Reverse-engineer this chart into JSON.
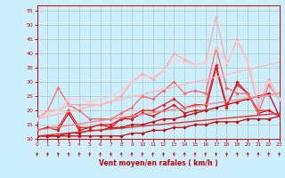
{
  "background_color": "#cceeff",
  "grid_color": "#aaccbb",
  "xlim": [
    0,
    23
  ],
  "ylim": [
    10,
    57
  ],
  "yticks": [
    10,
    15,
    20,
    25,
    30,
    35,
    40,
    45,
    50,
    55
  ],
  "xticks": [
    0,
    1,
    2,
    3,
    4,
    5,
    6,
    7,
    8,
    9,
    10,
    11,
    12,
    13,
    14,
    15,
    16,
    17,
    18,
    19,
    20,
    21,
    22,
    23
  ],
  "xlabel": "Vent moyen/en rafales ( km/h )",
  "tick_color": "#cc0000",
  "label_color": "#cc0000",
  "lines": [
    {
      "x": [
        0,
        1,
        2,
        3,
        4,
        5,
        6,
        7,
        8,
        9,
        10,
        11,
        12,
        13,
        14,
        15,
        16,
        17,
        18,
        19,
        20,
        21,
        22,
        23
      ],
      "y": [
        11,
        11,
        11,
        11,
        11,
        11,
        11,
        11,
        11,
        12,
        12,
        13,
        13,
        14,
        14,
        15,
        15,
        16,
        16,
        16,
        17,
        17,
        17,
        18
      ],
      "color": "#cc0000",
      "lw": 0.9,
      "marker": "D",
      "ms": 1.8
    },
    {
      "x": [
        0,
        1,
        2,
        3,
        4,
        5,
        6,
        7,
        8,
        9,
        10,
        11,
        12,
        13,
        14,
        15,
        16,
        17,
        18,
        19,
        20,
        21,
        22,
        23
      ],
      "y": [
        11,
        11,
        11,
        12,
        12,
        13,
        13,
        14,
        14,
        15,
        15,
        16,
        17,
        17,
        18,
        19,
        20,
        21,
        22,
        23,
        24,
        25,
        26,
        18
      ],
      "color": "#cc0000",
      "lw": 0.9,
      "marker": "D",
      "ms": 1.8
    },
    {
      "x": [
        0,
        1,
        2,
        3,
        4,
        5,
        6,
        7,
        8,
        9,
        10,
        11,
        12,
        13,
        14,
        15,
        16,
        17,
        18,
        19,
        20,
        21,
        22,
        23
      ],
      "y": [
        13,
        14,
        13,
        19,
        13,
        14,
        15,
        14,
        17,
        17,
        19,
        18,
        20,
        22,
        19,
        20,
        20,
        35,
        21,
        30,
        26,
        19,
        20,
        18
      ],
      "color": "#dd1111",
      "lw": 0.9,
      "marker": "D",
      "ms": 1.8
    },
    {
      "x": [
        0,
        1,
        2,
        3,
        4,
        5,
        6,
        7,
        8,
        9,
        10,
        11,
        12,
        13,
        14,
        15,
        16,
        17,
        18,
        19,
        20,
        21,
        22,
        23
      ],
      "y": [
        13,
        14,
        14,
        20,
        14,
        14,
        15,
        15,
        17,
        18,
        20,
        20,
        22,
        24,
        21,
        22,
        22,
        36,
        22,
        29,
        26,
        20,
        20,
        18
      ],
      "color": "#ee2222",
      "lw": 0.9,
      "marker": "D",
      "ms": 1.8
    },
    {
      "x": [
        0,
        1,
        2,
        3,
        4,
        5,
        6,
        7,
        8,
        9,
        10,
        11,
        12,
        13,
        14,
        15,
        16,
        17,
        18,
        19,
        20,
        21,
        22,
        23
      ],
      "y": [
        17,
        20,
        28,
        22,
        20,
        17,
        17,
        17,
        19,
        21,
        25,
        24,
        27,
        30,
        26,
        27,
        26,
        42,
        28,
        26,
        26,
        19,
        29,
        24
      ],
      "color": "#ff6666",
      "lw": 0.9,
      "marker": "D",
      "ms": 1.8
    },
    {
      "x": [
        0,
        1,
        2,
        3,
        4,
        5,
        6,
        7,
        8,
        9,
        10,
        11,
        12,
        13,
        14,
        15,
        16,
        17,
        18,
        19,
        20,
        21,
        22,
        23
      ],
      "y": [
        17,
        20,
        20,
        22,
        22,
        22,
        22,
        23,
        25,
        30,
        33,
        31,
        34,
        40,
        38,
        36,
        37,
        53,
        36,
        45,
        37,
        21,
        31,
        24
      ],
      "color": "#ffaaaa",
      "lw": 0.9,
      "marker": "D",
      "ms": 1.8
    },
    {
      "x": [
        0,
        1,
        2,
        3,
        4,
        5,
        6,
        7,
        8,
        9,
        10,
        11,
        12,
        13,
        14,
        15,
        16,
        17,
        18,
        19,
        20,
        21,
        22,
        23
      ],
      "y": [
        17,
        19,
        20,
        24,
        24,
        23,
        24,
        25,
        27,
        30,
        32,
        32,
        34,
        38,
        37,
        36,
        37,
        42,
        37,
        44,
        37,
        26,
        30,
        24
      ],
      "color": "#ffcccc",
      "lw": 0.9,
      "marker": "D",
      "ms": 1.8
    },
    {
      "x": [
        0,
        23
      ],
      "y": [
        17,
        37
      ],
      "color": "#ffbbbb",
      "lw": 1.0,
      "marker": null,
      "ms": 0
    },
    {
      "x": [
        0,
        23
      ],
      "y": [
        13,
        26
      ],
      "color": "#ff8888",
      "lw": 1.0,
      "marker": null,
      "ms": 0
    },
    {
      "x": [
        0,
        23
      ],
      "y": [
        11,
        19
      ],
      "color": "#dd3333",
      "lw": 1.0,
      "marker": null,
      "ms": 0
    }
  ]
}
